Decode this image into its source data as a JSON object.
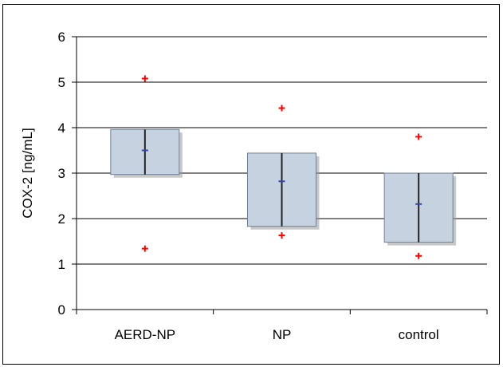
{
  "chart_data": {
    "type": "box",
    "categories": [
      "AERD-NP",
      "NP",
      "control"
    ],
    "ylabel": "COX-2 [ng/mL]",
    "xlabel": "",
    "ylim": [
      0,
      6
    ],
    "yticks": [
      "0",
      "1",
      "2",
      "3",
      "4",
      "5",
      "6"
    ],
    "grid": true,
    "boxes": [
      {
        "category": "AERD-NP",
        "q1": 2.97,
        "q3": 3.96,
        "median": 3.5,
        "whisker_low": 2.97,
        "whisker_high": 3.96,
        "outliers": [
          5.08,
          1.34
        ]
      },
      {
        "category": "NP",
        "q1": 1.83,
        "q3": 3.44,
        "median": 2.82,
        "whisker_low": 1.83,
        "whisker_high": 3.44,
        "outliers": [
          4.43,
          1.63
        ]
      },
      {
        "category": "control",
        "q1": 1.48,
        "q3": 3.0,
        "median": 2.32,
        "whisker_low": 1.48,
        "whisker_high": 3.0,
        "outliers": [
          3.8,
          1.18
        ]
      }
    ],
    "colors": {
      "box_fill": "#c6d2e0",
      "box_stroke": "#222222",
      "outlier": "#ff0000",
      "median": "#3344aa",
      "grid": "#000000",
      "shadow": "#9a9a9a"
    }
  }
}
